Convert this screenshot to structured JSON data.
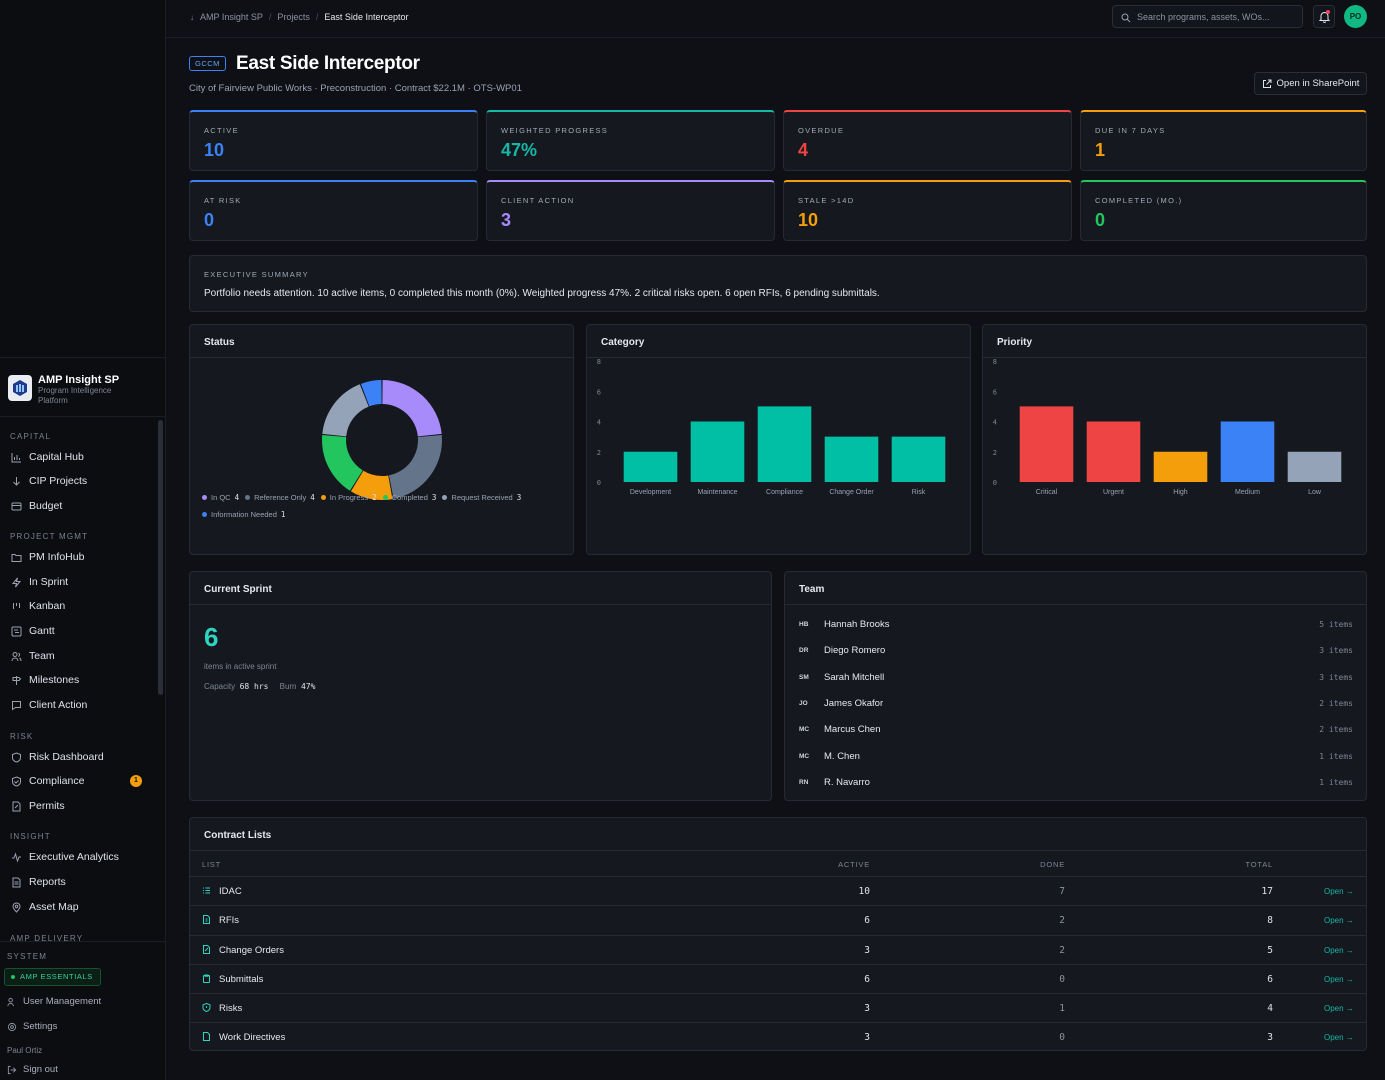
{
  "breadcrumb": [
    "AMP Insight SP",
    "Projects",
    "East Side Interceptor"
  ],
  "search": {
    "placeholder": "Search programs, assets, WOs..."
  },
  "user": {
    "initials": "PO",
    "name": "Paul Ortiz"
  },
  "brand": {
    "name": "AMP Insight SP",
    "subtitle": "Program Intelligence Platform"
  },
  "nav": {
    "capital": {
      "label": "CAPITAL",
      "items": [
        "Capital Hub",
        "CIP Projects",
        "Budget"
      ]
    },
    "project": {
      "label": "PROJECT MGMT",
      "items": [
        "PM InfoHub",
        "In Sprint",
        "Kanban",
        "Gantt",
        "Team",
        "Milestones",
        "Client Action"
      ]
    },
    "risk": {
      "label": "RISK",
      "items": [
        "Risk Dashboard",
        "Compliance",
        "Permits"
      ],
      "compliance_badge": "1"
    },
    "insight": {
      "label": "INSIGHT",
      "items": [
        "Executive Analytics",
        "Reports",
        "Asset Map"
      ]
    },
    "delivery": {
      "label": "AMP DELIVERY"
    },
    "system": {
      "label": "SYSTEM",
      "essentials": "AMP ESSENTIALS",
      "items": [
        "User Management",
        "Settings"
      ],
      "signout": "Sign out"
    }
  },
  "project": {
    "tag": "GCCM",
    "title": "East Side Interceptor",
    "subtitle": "City of Fairview Public Works · Preconstruction · Contract $22.1M · OTS-WP01",
    "sharepoint": "Open in SharePoint"
  },
  "kpis": [
    {
      "label": "ACTIVE",
      "value": "10",
      "color": "#3b82f6"
    },
    {
      "label": "WEIGHTED PROGRESS",
      "value": "47%",
      "color": "#14b8a6"
    },
    {
      "label": "OVERDUE",
      "value": "4",
      "color": "#ef4444"
    },
    {
      "label": "DUE IN 7 DAYS",
      "value": "1",
      "color": "#f59e0b"
    },
    {
      "label": "AT RISK",
      "value": "0",
      "color": "#3b82f6"
    },
    {
      "label": "CLIENT ACTION",
      "value": "3",
      "color": "#a78bfa"
    },
    {
      "label": "STALE >14D",
      "value": "10",
      "color": "#f59e0b"
    },
    {
      "label": "COMPLETED (MO.)",
      "value": "0",
      "color": "#22c55e"
    }
  ],
  "executive_summary": {
    "label": "EXECUTIVE SUMMARY",
    "text": "Portfolio needs attention. 10 active items, 0 completed this month (0%). Weighted progress 47%. 2 critical risks open. 6 open RFIs, 6 pending submittals."
  },
  "chart_data": [
    {
      "type": "pie",
      "title": "Status",
      "categories": [
        "In QC",
        "Reference Only",
        "In Progress",
        "Completed",
        "Request Received",
        "Information Needed"
      ],
      "values": [
        4,
        4,
        2,
        3,
        3,
        1
      ],
      "colors": [
        "#a78bfa",
        "#64748b",
        "#f59e0b",
        "#22c55e",
        "#94a3b8",
        "#3b82f6"
      ],
      "legend": "bottom"
    },
    {
      "type": "bar",
      "title": "Category",
      "categories": [
        "Development",
        "Maintenance",
        "Compliance",
        "Change Order",
        "Risk"
      ],
      "values": [
        2,
        4,
        5,
        3,
        3
      ],
      "colors": [
        "#00bfa5",
        "#00bfa5",
        "#00bfa5",
        "#00bfa5",
        "#00bfa5"
      ],
      "ylim": [
        0,
        8
      ],
      "yticks": [
        0,
        2,
        4,
        6,
        8
      ]
    },
    {
      "type": "bar",
      "title": "Priority",
      "categories": [
        "Critical",
        "Urgent",
        "High",
        "Medium",
        "Low"
      ],
      "values": [
        5,
        4,
        2,
        4,
        2
      ],
      "colors": [
        "#ef4444",
        "#ef4444",
        "#f59e0b",
        "#3b82f6",
        "#94a3b8"
      ],
      "ylim": [
        0,
        8
      ],
      "yticks": [
        0,
        2,
        4,
        6,
        8
      ]
    }
  ],
  "sprint": {
    "title": "Current Sprint",
    "count": "6",
    "label": "items in active sprint",
    "capacity_label": "Capacity",
    "capacity": "68 hrs",
    "burn_label": "Burn",
    "burn": "47%"
  },
  "team": {
    "title": "Team",
    "members": [
      {
        "initials": "HB",
        "name": "Hannah Brooks",
        "items": "5 items"
      },
      {
        "initials": "DR",
        "name": "Diego Romero",
        "items": "3 items"
      },
      {
        "initials": "SM",
        "name": "Sarah Mitchell",
        "items": "3 items"
      },
      {
        "initials": "JO",
        "name": "James Okafor",
        "items": "2 items"
      },
      {
        "initials": "MC",
        "name": "Marcus Chen",
        "items": "2 items"
      },
      {
        "initials": "MC",
        "name": "M. Chen",
        "items": "1 items"
      },
      {
        "initials": "RN",
        "name": "R. Navarro",
        "items": "1 items"
      }
    ]
  },
  "contracts": {
    "title": "Contract Lists",
    "headers": {
      "list": "LIST",
      "active": "ACTIVE",
      "done": "DONE",
      "total": "TOTAL"
    },
    "open_label": "Open →",
    "rows": [
      {
        "name": "IDAC",
        "active": "10",
        "done": "7",
        "total": "17"
      },
      {
        "name": "RFIs",
        "active": "6",
        "done": "2",
        "total": "8"
      },
      {
        "name": "Change Orders",
        "active": "3",
        "done": "2",
        "total": "5"
      },
      {
        "name": "Submittals",
        "active": "6",
        "done": "0",
        "total": "6"
      },
      {
        "name": "Risks",
        "active": "3",
        "done": "1",
        "total": "4"
      },
      {
        "name": "Work Directives",
        "active": "3",
        "done": "0",
        "total": "3"
      }
    ]
  }
}
